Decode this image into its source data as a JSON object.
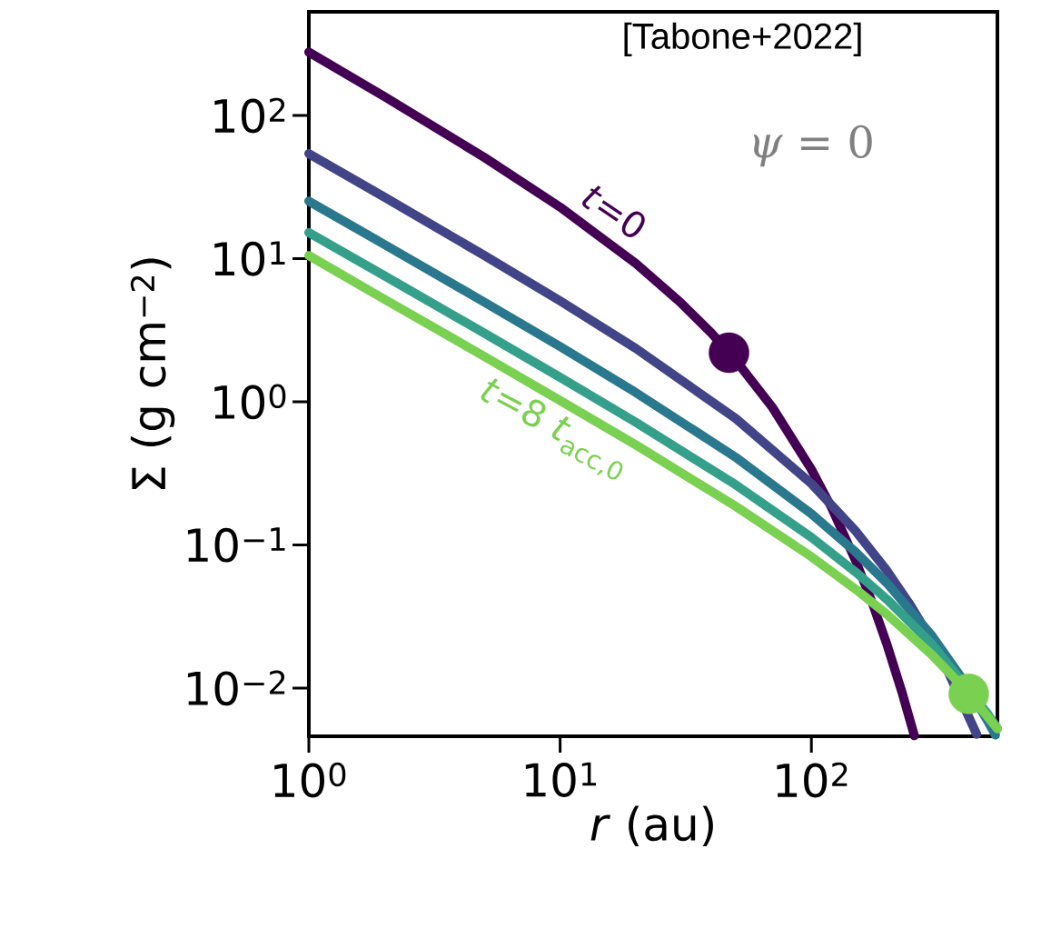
{
  "chart_data": {
    "type": "line",
    "xlabel": "*r* (au)",
    "ylabel": "Σ (g cm$^{−2}$)",
    "log": "xy",
    "xlim": [
      1,
      550
    ],
    "ylim": [
      0.0046,
      530
    ],
    "xticks": [
      {
        "value": 1,
        "label": "10$^{0}$"
      },
      {
        "value": 10,
        "label": "10$^{1}$"
      },
      {
        "value": 100,
        "label": "10$^{2}$"
      }
    ],
    "yticks": [
      {
        "value": 0.01,
        "label": "10$^{−2}$"
      },
      {
        "value": 0.1,
        "label": "10$^{−1}$"
      },
      {
        "value": 1,
        "label": "10$^{0}$"
      },
      {
        "value": 10,
        "label": "10$^{1}$"
      },
      {
        "value": 100,
        "label": "10$^{2}$"
      }
    ],
    "annotations": [
      "[Tabone+2022]",
      "*ψ* = 0"
    ],
    "series": [
      {
        "name": "*t*=0",
        "color": "#440154",
        "x": [
          1,
          2,
          5,
          10,
          20,
          30,
          40,
          50,
          70,
          100,
          120,
          150,
          175,
          200,
          230,
          257
        ],
        "values": [
          277,
          135.6,
          50.9,
          22.9,
          9.25,
          4.98,
          3.02,
          1.95,
          0.912,
          0.337,
          0.184,
          0.0776,
          0.0391,
          0.0201,
          0.0092,
          0.00465
        ]
      },
      {
        "color": "#414487",
        "x": [
          1,
          2,
          5,
          10,
          20,
          50,
          100,
          150,
          200,
          250,
          300,
          350,
          400,
          455
        ],
        "values": [
          54.1,
          26.9,
          10.5,
          5.07,
          2.36,
          0.764,
          0.268,
          0.125,
          0.0659,
          0.037,
          0.0216,
          0.013,
          null,
          0.00475
        ]
      },
      {
        "color": "#2a788e",
        "x": [
          1,
          2,
          5,
          10,
          20,
          50,
          100,
          150,
          200,
          300,
          400,
          500,
          540
        ],
        "values": [
          25.2,
          12.55,
          4.96,
          2.43,
          1.16,
          0.409,
          0.165,
          0.0891,
          0.054,
          0.0235,
          0.0115,
          0.006,
          0.0047
        ]
      },
      {
        "color": "#35a08a",
        "x": [
          1,
          2,
          5,
          10,
          20,
          50,
          100,
          150,
          200,
          300,
          400,
          500,
          550
        ],
        "values": [
          15.2,
          7.59,
          3.01,
          1.48,
          0.719,
          0.263,
          0.113,
          0.0646,
          0.0416,
          0.0205,
          null,
          0.0067,
          0.0052
        ]
      },
      {
        "name": "*t*=8 *t*$_{acc,0}$",
        "color": "#7ad151",
        "x": [
          1,
          2,
          5,
          10,
          20,
          50,
          100,
          150,
          200,
          300,
          400,
          500,
          550
        ],
        "values": [
          10.5,
          5.2,
          2.07,
          1.02,
          0.5,
          0.186,
          0.0827,
          0.049,
          0.0327,
          0.0172,
          0.0102,
          0.0064,
          0.0052
        ]
      },
      {
        "type": "scatter",
        "marker": "circle",
        "color": "#440154",
        "x": [
          47
        ],
        "values": [
          2.2
        ]
      },
      {
        "type": "scatter",
        "marker": "circle",
        "color": "#7ad151",
        "x": [
          423
        ],
        "values": [
          0.0091
        ]
      }
    ]
  }
}
